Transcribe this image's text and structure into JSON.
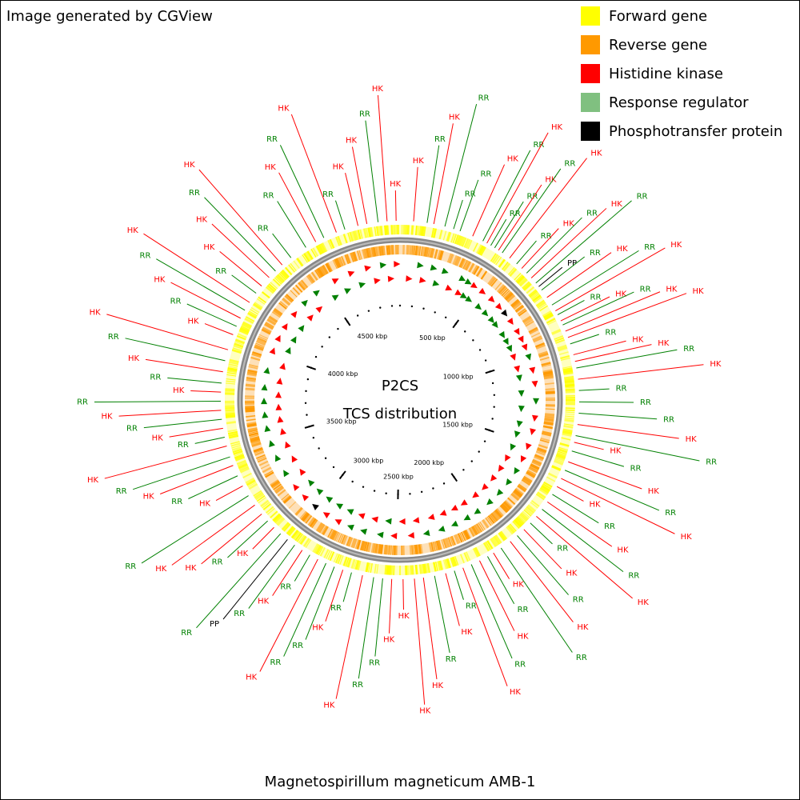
{
  "header": "Image generated by CGView",
  "legend": [
    {
      "label": "Forward gene",
      "color": "#ffff00"
    },
    {
      "label": "Reverse gene",
      "color": "#ff9900"
    },
    {
      "label": "Histidine kinase",
      "color": "#ff0000"
    },
    {
      "label": "Response regulator",
      "color": "#80c080"
    },
    {
      "label": "Phosphotransfer protein",
      "color": "#000000"
    }
  ],
  "center_title": "P2CS",
  "center_subtitle": "TCS distribution",
  "organism": "Magnetospirillum magneticum AMB-1",
  "xlim": [
    0,
    4967
  ],
  "xticks": [
    {
      "value": 500,
      "label": "500 kbp"
    },
    {
      "value": 1000,
      "label": "1000 kbp"
    },
    {
      "value": 1500,
      "label": "1500 kbp"
    },
    {
      "value": 2000,
      "label": "2000 kbp"
    },
    {
      "value": 2500,
      "label": "2500 kbp"
    },
    {
      "value": 3000,
      "label": "3000 kbp"
    },
    {
      "value": 3500,
      "label": "3500 kbp"
    },
    {
      "value": 4000,
      "label": "4000 kbp"
    },
    {
      "value": 4500,
      "label": "4500 kbp"
    }
  ],
  "features": [
    {
      "pos": 4950,
      "label": "HK",
      "color": "#ff0000"
    },
    {
      "pos": 60,
      "label": "HK",
      "color": "#ff0000"
    },
    {
      "pos": 120,
      "label": "RR",
      "color": "#008000"
    },
    {
      "pos": 150,
      "label": "HK",
      "color": "#ff0000"
    },
    {
      "pos": 200,
      "label": "RR",
      "color": "#008000"
    },
    {
      "pos": 240,
      "label": "RR",
      "color": "#008000"
    },
    {
      "pos": 270,
      "label": "RR",
      "color": "#008000"
    },
    {
      "pos": 330,
      "label": "HK",
      "color": "#ff0000"
    },
    {
      "pos": 380,
      "label": "RR",
      "color": "#008000"
    },
    {
      "pos": 400,
      "label": "HK",
      "color": "#ff0000"
    },
    {
      "pos": 420,
      "label": "RR",
      "color": "#008000"
    },
    {
      "pos": 440,
      "label": "RR",
      "color": "#008000"
    },
    {
      "pos": 460,
      "label": "HK",
      "color": "#ff0000"
    },
    {
      "pos": 480,
      "label": "RR",
      "color": "#008000"
    },
    {
      "pos": 520,
      "label": "HK",
      "color": "#ff0000"
    },
    {
      "pos": 560,
      "label": "RR",
      "color": "#008000"
    },
    {
      "pos": 590,
      "label": "HK",
      "color": "#ff0000"
    },
    {
      "pos": 620,
      "label": "RR",
      "color": "#008000"
    },
    {
      "pos": 650,
      "label": "HK",
      "color": "#ff0000"
    },
    {
      "pos": 680,
      "label": "RR",
      "color": "#008000"
    },
    {
      "pos": 700,
      "label": "PP",
      "color": "#000000"
    },
    {
      "pos": 720,
      "label": "RR",
      "color": "#008000"
    },
    {
      "pos": 760,
      "label": "HK",
      "color": "#ff0000"
    },
    {
      "pos": 800,
      "label": "RR",
      "color": "#008000"
    },
    {
      "pos": 830,
      "label": "HK",
      "color": "#ff0000"
    },
    {
      "pos": 850,
      "label": "RR",
      "color": "#008000"
    },
    {
      "pos": 880,
      "label": "HK",
      "color": "#ff0000"
    },
    {
      "pos": 900,
      "label": "RR",
      "color": "#008000"
    },
    {
      "pos": 930,
      "label": "HK",
      "color": "#ff0000"
    },
    {
      "pos": 960,
      "label": "HK",
      "color": "#ff0000"
    },
    {
      "pos": 990,
      "label": "RR",
      "color": "#008000"
    },
    {
      "pos": 1040,
      "label": "HK",
      "color": "#ff0000"
    },
    {
      "pos": 1070,
      "label": "HK",
      "color": "#ff0000"
    },
    {
      "pos": 1100,
      "label": "RR",
      "color": "#008000"
    },
    {
      "pos": 1150,
      "label": "HK",
      "color": "#ff0000"
    },
    {
      "pos": 1200,
      "label": "RR",
      "color": "#008000"
    },
    {
      "pos": 1250,
      "label": "RR",
      "color": "#008000"
    },
    {
      "pos": 1300,
      "label": "RR",
      "color": "#008000"
    },
    {
      "pos": 1350,
      "label": "HK",
      "color": "#ff0000"
    },
    {
      "pos": 1400,
      "label": "RR",
      "color": "#008000"
    },
    {
      "pos": 1430,
      "label": "HK",
      "color": "#ff0000"
    },
    {
      "pos": 1470,
      "label": "RR",
      "color": "#008000"
    },
    {
      "pos": 1520,
      "label": "HK",
      "color": "#ff0000"
    },
    {
      "pos": 1560,
      "label": "RR",
      "color": "#008000"
    },
    {
      "pos": 1600,
      "label": "HK",
      "color": "#ff0000"
    },
    {
      "pos": 1640,
      "label": "HK",
      "color": "#ff0000"
    },
    {
      "pos": 1680,
      "label": "RR",
      "color": "#008000"
    },
    {
      "pos": 1720,
      "label": "HK",
      "color": "#ff0000"
    },
    {
      "pos": 1760,
      "label": "RR",
      "color": "#008000"
    },
    {
      "pos": 1800,
      "label": "HK",
      "color": "#ff0000"
    },
    {
      "pos": 1840,
      "label": "RR",
      "color": "#008000"
    },
    {
      "pos": 1880,
      "label": "HK",
      "color": "#ff0000"
    },
    {
      "pos": 1920,
      "label": "RR",
      "color": "#008000"
    },
    {
      "pos": 1960,
      "label": "HK",
      "color": "#ff0000"
    },
    {
      "pos": 2010,
      "label": "RR",
      "color": "#008000"
    },
    {
      "pos": 2050,
      "label": "HK",
      "color": "#ff0000"
    },
    {
      "pos": 2080,
      "label": "RR",
      "color": "#008000"
    },
    {
      "pos": 2120,
      "label": "HK",
      "color": "#ff0000"
    },
    {
      "pos": 2160,
      "label": "RR",
      "color": "#008000"
    },
    {
      "pos": 2200,
      "label": "HK",
      "color": "#ff0000"
    },
    {
      "pos": 2240,
      "label": "RR",
      "color": "#008000"
    },
    {
      "pos": 2280,
      "label": "HK",
      "color": "#ff0000"
    },
    {
      "pos": 2330,
      "label": "RR",
      "color": "#008000"
    },
    {
      "pos": 2380,
      "label": "HK",
      "color": "#ff0000"
    },
    {
      "pos": 2420,
      "label": "HK",
      "color": "#ff0000"
    },
    {
      "pos": 2470,
      "label": "HK",
      "color": "#ff0000"
    },
    {
      "pos": 2520,
      "label": "HK",
      "color": "#ff0000"
    },
    {
      "pos": 2560,
      "label": "RR",
      "color": "#008000"
    },
    {
      "pos": 2600,
      "label": "RR",
      "color": "#008000"
    },
    {
      "pos": 2650,
      "label": "HK",
      "color": "#ff0000"
    },
    {
      "pos": 2700,
      "label": "RR",
      "color": "#008000"
    },
    {
      "pos": 2740,
      "label": "HK",
      "color": "#ff0000"
    },
    {
      "pos": 2780,
      "label": "RR",
      "color": "#008000"
    },
    {
      "pos": 2820,
      "label": "RR",
      "color": "#008000"
    },
    {
      "pos": 2860,
      "label": "HK",
      "color": "#ff0000"
    },
    {
      "pos": 2900,
      "label": "RR",
      "color": "#008000"
    },
    {
      "pos": 2940,
      "label": "HK",
      "color": "#ff0000"
    },
    {
      "pos": 2980,
      "label": "RR",
      "color": "#008000"
    },
    {
      "pos": 3020,
      "label": "PP",
      "color": "#000000"
    },
    {
      "pos": 3060,
      "label": "RR",
      "color": "#008000"
    },
    {
      "pos": 3100,
      "label": "HK",
      "color": "#ff0000"
    },
    {
      "pos": 3140,
      "label": "RR",
      "color": "#008000"
    },
    {
      "pos": 3180,
      "label": "HK",
      "color": "#ff0000"
    },
    {
      "pos": 3230,
      "label": "HK",
      "color": "#ff0000"
    },
    {
      "pos": 3280,
      "label": "RR",
      "color": "#008000"
    },
    {
      "pos": 3330,
      "label": "HK",
      "color": "#ff0000"
    },
    {
      "pos": 3380,
      "label": "RR",
      "color": "#008000"
    },
    {
      "pos": 3430,
      "label": "HK",
      "color": "#ff0000"
    },
    {
      "pos": 3470,
      "label": "RR",
      "color": "#008000"
    },
    {
      "pos": 3520,
      "label": "HK",
      "color": "#ff0000"
    },
    {
      "pos": 3560,
      "label": "RR",
      "color": "#008000"
    },
    {
      "pos": 3600,
      "label": "HK",
      "color": "#ff0000"
    },
    {
      "pos": 3640,
      "label": "RR",
      "color": "#008000"
    },
    {
      "pos": 3680,
      "label": "HK",
      "color": "#ff0000"
    },
    {
      "pos": 3720,
      "label": "RR",
      "color": "#008000"
    },
    {
      "pos": 3760,
      "label": "HK",
      "color": "#ff0000"
    },
    {
      "pos": 3800,
      "label": "RR",
      "color": "#008000"
    },
    {
      "pos": 3850,
      "label": "HK",
      "color": "#ff0000"
    },
    {
      "pos": 3900,
      "label": "RR",
      "color": "#008000"
    },
    {
      "pos": 3950,
      "label": "HK",
      "color": "#ff0000"
    },
    {
      "pos": 4020,
      "label": "HK",
      "color": "#ff0000"
    },
    {
      "pos": 4060,
      "label": "RR",
      "color": "#008000"
    },
    {
      "pos": 4100,
      "label": "HK",
      "color": "#ff0000"
    },
    {
      "pos": 4140,
      "label": "RR",
      "color": "#008000"
    },
    {
      "pos": 4180,
      "label": "HK",
      "color": "#ff0000"
    },
    {
      "pos": 4230,
      "label": "RR",
      "color": "#008000"
    },
    {
      "pos": 4270,
      "label": "HK",
      "color": "#ff0000"
    },
    {
      "pos": 4320,
      "label": "HK",
      "color": "#ff0000"
    },
    {
      "pos": 4360,
      "label": "RR",
      "color": "#008000"
    },
    {
      "pos": 4400,
      "label": "HK",
      "color": "#ff0000"
    },
    {
      "pos": 4450,
      "label": "RR",
      "color": "#008000"
    },
    {
      "pos": 4530,
      "label": "RR",
      "color": "#008000"
    },
    {
      "pos": 4580,
      "label": "HK",
      "color": "#ff0000"
    },
    {
      "pos": 4620,
      "label": "RR",
      "color": "#008000"
    },
    {
      "pos": 4680,
      "label": "HK",
      "color": "#ff0000"
    },
    {
      "pos": 4720,
      "label": "RR",
      "color": "#008000"
    },
    {
      "pos": 4780,
      "label": "HK",
      "color": "#ff0000"
    },
    {
      "pos": 4820,
      "label": "HK",
      "color": "#ff0000"
    },
    {
      "pos": 4870,
      "label": "RR",
      "color": "#008000"
    },
    {
      "pos": 4910,
      "label": "HK",
      "color": "#ff0000"
    }
  ]
}
